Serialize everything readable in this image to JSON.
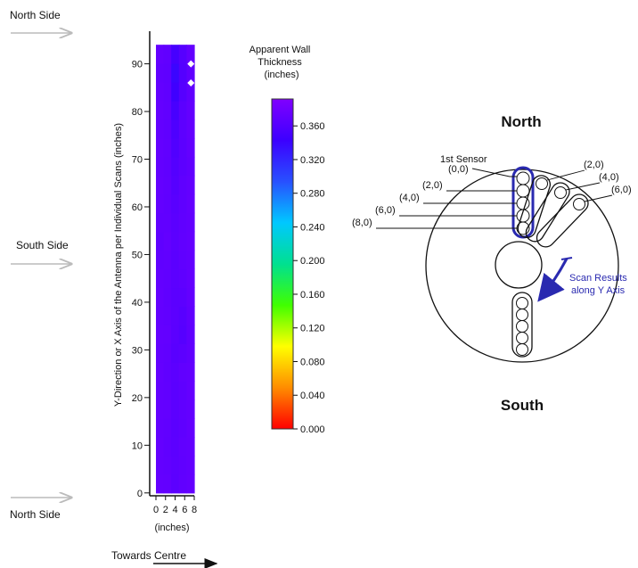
{
  "side_labels": {
    "top": "North Side",
    "middle": "South Side",
    "bottom": "North Side"
  },
  "chart_data": {
    "type": "heatmap",
    "ylabel": "Y-Direction or X Axis of the Antenna per Individual Scans (inches)",
    "xlabel": "(inches)",
    "x_caption": "Towards Centre",
    "x_ticks": [
      0,
      2,
      4,
      6,
      8
    ],
    "y_ticks": [
      0,
      10,
      20,
      30,
      40,
      50,
      60,
      70,
      80,
      90
    ],
    "xlim": [
      0,
      8
    ],
    "ylim": [
      0,
      94
    ],
    "x_columns": [
      0,
      2,
      4,
      6,
      8
    ],
    "y_rows": [
      2,
      6,
      10,
      14,
      18,
      22,
      26,
      30,
      34,
      38,
      42,
      46,
      50,
      54,
      58,
      62,
      66,
      70,
      74,
      78,
      82,
      86,
      90,
      94
    ],
    "values_rows_low_to_high_y": [
      [
        0.372,
        0.371,
        0.366,
        0.37,
        0.372
      ],
      [
        0.371,
        0.37,
        0.367,
        0.369,
        0.371
      ],
      [
        0.372,
        0.369,
        0.366,
        0.37,
        0.371
      ],
      [
        0.371,
        0.37,
        0.365,
        0.368,
        0.372
      ],
      [
        0.372,
        0.371,
        0.366,
        0.369,
        0.371
      ],
      [
        0.371,
        0.37,
        0.365,
        0.368,
        0.372
      ],
      [
        0.372,
        0.369,
        0.366,
        0.37,
        0.371
      ],
      [
        0.371,
        0.37,
        0.364,
        0.366,
        0.37
      ],
      [
        0.372,
        0.371,
        0.365,
        0.362,
        0.369
      ],
      [
        0.371,
        0.37,
        0.366,
        0.363,
        0.37
      ],
      [
        0.372,
        0.369,
        0.365,
        0.366,
        0.371
      ],
      [
        0.371,
        0.37,
        0.366,
        0.368,
        0.372
      ],
      [
        0.369,
        0.37,
        0.365,
        0.369,
        0.371
      ],
      [
        0.368,
        0.371,
        0.366,
        0.37,
        0.372
      ],
      [
        0.37,
        0.37,
        0.365,
        0.369,
        0.371
      ],
      [
        0.371,
        0.369,
        0.364,
        0.368,
        0.372
      ],
      [
        0.372,
        0.37,
        0.362,
        0.368,
        0.371
      ],
      [
        0.371,
        0.369,
        0.36,
        0.366,
        0.37
      ],
      [
        0.372,
        0.37,
        0.358,
        0.366,
        0.371
      ],
      [
        0.371,
        0.369,
        0.356,
        0.367,
        0.372
      ],
      [
        0.372,
        0.37,
        0.352,
        0.365,
        0.371
      ],
      [
        0.371,
        0.369,
        0.345,
        0.362,
        0.37
      ],
      [
        0.37,
        0.368,
        0.34,
        0.36,
        0.369
      ],
      [
        0.372,
        0.37,
        0.35,
        0.362,
        0.371
      ]
    ],
    "markers": [
      {
        "x": 7.3,
        "y": 90
      },
      {
        "x": 7.3,
        "y": 86
      }
    ],
    "marker_color": "#ffffff",
    "colorbar": {
      "title": [
        "Apparent Wall",
        "Thickness",
        "(inches)"
      ],
      "min": 0,
      "max": 0.392,
      "ticks": [
        "0.360",
        "0.320",
        "0.280",
        "0.240",
        "0.200",
        "0.160",
        "0.120",
        "0.080",
        "0.040",
        "0.000"
      ],
      "tick_values": [
        0.36,
        0.32,
        0.28,
        0.24,
        0.2,
        0.16,
        0.12,
        0.08,
        0.04,
        0.0
      ],
      "colors": [
        "#ff0000",
        "#ff8c00",
        "#ffff00",
        "#40ff00",
        "#00e090",
        "#00c8ff",
        "#2850ff",
        "#3c00ff",
        "#8000ff"
      ]
    }
  },
  "diagram": {
    "north": "North",
    "south": "South",
    "first_sensor": "1st Sensor",
    "left_labels": [
      "(0,0)",
      "(2,0)",
      "(4,0)",
      "(6,0)",
      "(8,0)"
    ],
    "right_labels": [
      "(2,0)",
      "(4,0)",
      "(6,0)"
    ],
    "scan_text": [
      "Scan Results",
      "along Y Axis"
    ],
    "accent": "#2a2ab0"
  }
}
